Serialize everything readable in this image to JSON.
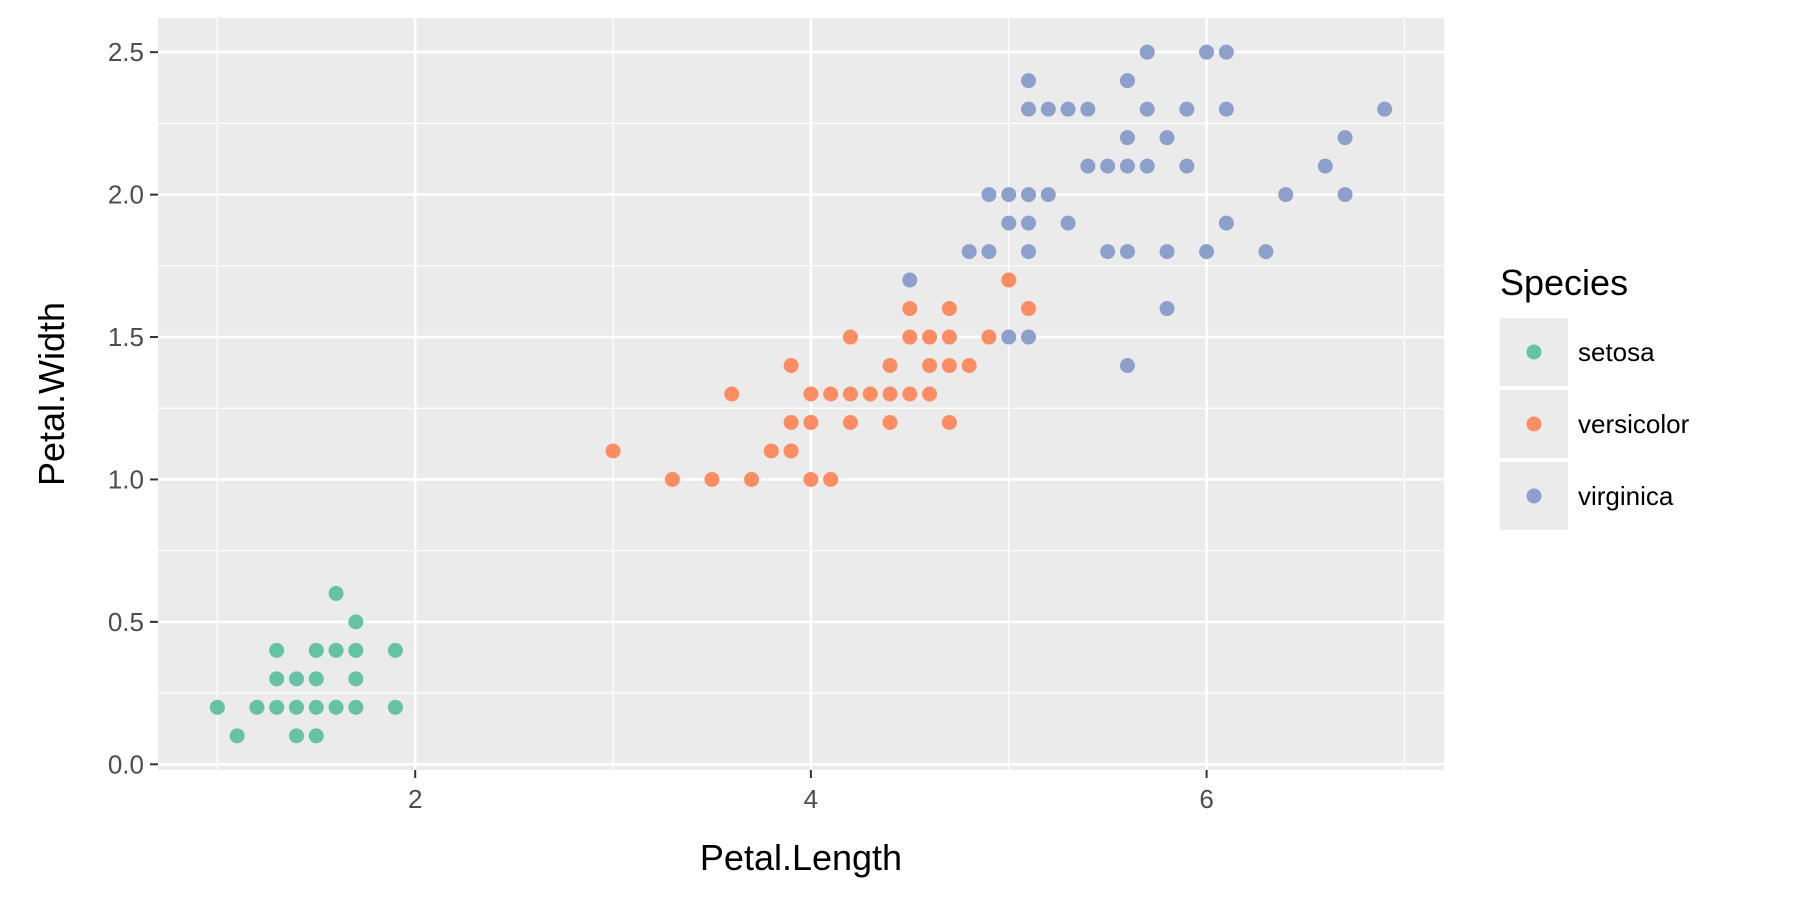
{
  "chart_data": {
    "type": "scatter",
    "xlabel": "Petal.Length",
    "ylabel": "Petal.Width",
    "xlim": [
      0.7,
      7.2
    ],
    "ylim": [
      -0.02,
      2.62
    ],
    "x_ticks": [
      2,
      4,
      6
    ],
    "x_tick_labels": [
      "2",
      "4",
      "6"
    ],
    "x_minor_ticks": [
      1,
      3,
      5,
      7
    ],
    "y_ticks": [
      0.0,
      0.5,
      1.0,
      1.5,
      2.0,
      2.5
    ],
    "y_tick_labels": [
      "0.0",
      "0.5",
      "1.0",
      "1.5",
      "2.0",
      "2.5"
    ],
    "y_minor_ticks": [
      0.25,
      0.75,
      1.25,
      1.75,
      2.25
    ],
    "grid": true,
    "legend": {
      "title": "Species",
      "position": "right"
    },
    "panel_background": "#ebebeb",
    "grid_color": "#ffffff",
    "series": [
      {
        "name": "setosa",
        "color": "#66c2a5",
        "points": [
          [
            1.0,
            0.2
          ],
          [
            1.1,
            0.1
          ],
          [
            1.2,
            0.2
          ],
          [
            1.3,
            0.2
          ],
          [
            1.3,
            0.3
          ],
          [
            1.3,
            0.4
          ],
          [
            1.4,
            0.1
          ],
          [
            1.4,
            0.2
          ],
          [
            1.4,
            0.3
          ],
          [
            1.5,
            0.1
          ],
          [
            1.5,
            0.2
          ],
          [
            1.5,
            0.3
          ],
          [
            1.5,
            0.4
          ],
          [
            1.6,
            0.2
          ],
          [
            1.6,
            0.4
          ],
          [
            1.6,
            0.6
          ],
          [
            1.7,
            0.2
          ],
          [
            1.7,
            0.3
          ],
          [
            1.7,
            0.4
          ],
          [
            1.7,
            0.5
          ],
          [
            1.9,
            0.2
          ],
          [
            1.9,
            0.4
          ]
        ]
      },
      {
        "name": "versicolor",
        "color": "#fc8d62",
        "points": [
          [
            3.0,
            1.1
          ],
          [
            3.3,
            1.0
          ],
          [
            3.5,
            1.0
          ],
          [
            3.6,
            1.3
          ],
          [
            3.7,
            1.0
          ],
          [
            3.8,
            1.1
          ],
          [
            3.9,
            1.1
          ],
          [
            3.9,
            1.2
          ],
          [
            3.9,
            1.4
          ],
          [
            4.0,
            1.0
          ],
          [
            4.0,
            1.2
          ],
          [
            4.0,
            1.3
          ],
          [
            4.1,
            1.0
          ],
          [
            4.1,
            1.3
          ],
          [
            4.2,
            1.2
          ],
          [
            4.2,
            1.3
          ],
          [
            4.2,
            1.5
          ],
          [
            4.3,
            1.3
          ],
          [
            4.4,
            1.2
          ],
          [
            4.4,
            1.3
          ],
          [
            4.4,
            1.4
          ],
          [
            4.5,
            1.3
          ],
          [
            4.5,
            1.5
          ],
          [
            4.5,
            1.6
          ],
          [
            4.6,
            1.3
          ],
          [
            4.6,
            1.4
          ],
          [
            4.6,
            1.5
          ],
          [
            4.7,
            1.2
          ],
          [
            4.7,
            1.4
          ],
          [
            4.7,
            1.5
          ],
          [
            4.7,
            1.6
          ],
          [
            4.8,
            1.4
          ],
          [
            4.9,
            1.5
          ],
          [
            5.0,
            1.7
          ],
          [
            5.1,
            1.6
          ]
        ]
      },
      {
        "name": "virginica",
        "color": "#8da0cb",
        "points": [
          [
            4.5,
            1.7
          ],
          [
            4.8,
            1.8
          ],
          [
            4.9,
            1.8
          ],
          [
            4.9,
            2.0
          ],
          [
            5.0,
            1.5
          ],
          [
            5.0,
            1.9
          ],
          [
            5.0,
            2.0
          ],
          [
            5.1,
            1.5
          ],
          [
            5.1,
            1.8
          ],
          [
            5.1,
            1.9
          ],
          [
            5.1,
            2.0
          ],
          [
            5.1,
            2.3
          ],
          [
            5.1,
            2.4
          ],
          [
            5.2,
            2.0
          ],
          [
            5.2,
            2.3
          ],
          [
            5.3,
            1.9
          ],
          [
            5.3,
            2.3
          ],
          [
            5.4,
            2.1
          ],
          [
            5.4,
            2.3
          ],
          [
            5.5,
            1.8
          ],
          [
            5.5,
            2.1
          ],
          [
            5.6,
            1.4
          ],
          [
            5.6,
            1.8
          ],
          [
            5.6,
            2.1
          ],
          [
            5.6,
            2.2
          ],
          [
            5.6,
            2.4
          ],
          [
            5.7,
            2.1
          ],
          [
            5.7,
            2.3
          ],
          [
            5.7,
            2.5
          ],
          [
            5.8,
            1.6
          ],
          [
            5.8,
            1.8
          ],
          [
            5.8,
            2.2
          ],
          [
            5.9,
            2.1
          ],
          [
            5.9,
            2.3
          ],
          [
            6.0,
            1.8
          ],
          [
            6.0,
            2.5
          ],
          [
            6.1,
            1.9
          ],
          [
            6.1,
            2.3
          ],
          [
            6.1,
            2.5
          ],
          [
            6.3,
            1.8
          ],
          [
            6.4,
            2.0
          ],
          [
            6.6,
            2.1
          ],
          [
            6.7,
            2.0
          ],
          [
            6.7,
            2.2
          ],
          [
            6.9,
            2.3
          ]
        ]
      }
    ]
  }
}
